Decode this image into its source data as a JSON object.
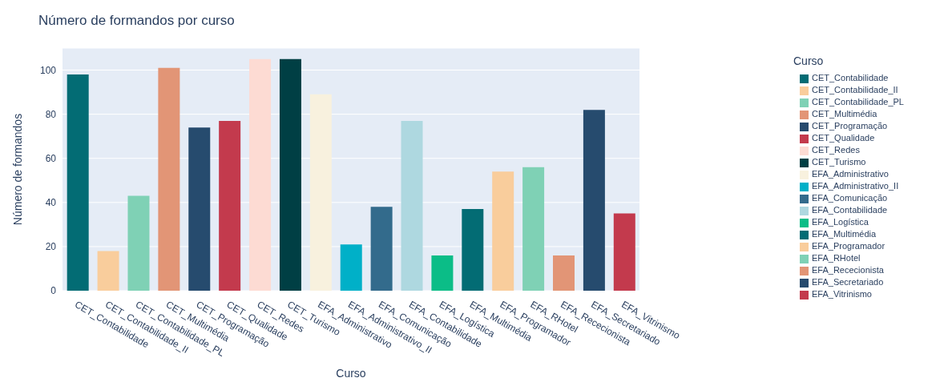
{
  "chart_data": {
    "type": "bar",
    "title": "Número de formandos por curso",
    "xlabel": "Curso",
    "ylabel": "Número de formandos",
    "legend_title": "Curso",
    "legend": "right",
    "grid": "y",
    "stacked": true,
    "categories": [
      "CET_Contabilidade",
      "CET_Contabilidade_II",
      "CET_Contabilidade_PL",
      "CET_Multimédia",
      "CET_Programação",
      "CET_Qualidade",
      "CET_Redes",
      "CET_Turismo",
      "EFA_Administrativo",
      "EFA_Administrativo_II",
      "EFA_Comunicação",
      "EFA_Contabilidade",
      "EFA_Logística",
      "EFA_Multimédia",
      "EFA_Programador",
      "EFA_RHotel",
      "EFA_Rececionista",
      "EFA_Secretariado",
      "EFA_Vitrinismo"
    ],
    "series": [
      {
        "name": "CET_Contabilidade",
        "color": "#036c74",
        "values": [
          98,
          null,
          null,
          null,
          null,
          null,
          null,
          null,
          null,
          null,
          null,
          null,
          null,
          null,
          null,
          null,
          null,
          null,
          null
        ]
      },
      {
        "name": "CET_Contabilidade_II",
        "color": "#f9cd9c",
        "values": [
          null,
          18,
          null,
          null,
          null,
          null,
          null,
          null,
          null,
          null,
          null,
          null,
          null,
          null,
          null,
          null,
          null,
          null,
          null
        ]
      },
      {
        "name": "CET_Contabilidade_PL",
        "color": "#7fd1b5",
        "values": [
          null,
          null,
          43,
          null,
          null,
          null,
          null,
          null,
          null,
          null,
          null,
          null,
          null,
          null,
          null,
          null,
          null,
          null,
          null
        ]
      },
      {
        "name": "CET_Multimédia",
        "color": "#e29576",
        "values": [
          null,
          null,
          null,
          101,
          null,
          null,
          null,
          null,
          null,
          null,
          null,
          null,
          null,
          null,
          null,
          null,
          null,
          null,
          null
        ]
      },
      {
        "name": "CET_Programação",
        "color": "#264b6e",
        "values": [
          null,
          null,
          null,
          null,
          74,
          null,
          null,
          null,
          null,
          null,
          null,
          null,
          null,
          null,
          null,
          null,
          null,
          null,
          null
        ]
      },
      {
        "name": "CET_Qualidade",
        "color": "#c33a4d",
        "values": [
          null,
          null,
          null,
          null,
          null,
          77,
          null,
          null,
          null,
          null,
          null,
          null,
          null,
          null,
          null,
          null,
          null,
          null,
          null
        ]
      },
      {
        "name": "CET_Redes",
        "color": "#fddbd3",
        "values": [
          null,
          null,
          null,
          null,
          null,
          null,
          105,
          null,
          null,
          null,
          null,
          null,
          null,
          null,
          null,
          null,
          null,
          null,
          null
        ]
      },
      {
        "name": "CET_Turismo",
        "color": "#003f44",
        "values": [
          null,
          null,
          null,
          null,
          null,
          null,
          null,
          105,
          null,
          null,
          null,
          null,
          null,
          null,
          null,
          null,
          null,
          null,
          null
        ]
      },
      {
        "name": "EFA_Administrativo",
        "color": "#f8f1de",
        "values": [
          null,
          null,
          null,
          null,
          null,
          null,
          null,
          null,
          89,
          null,
          null,
          null,
          null,
          null,
          null,
          null,
          null,
          null,
          null
        ]
      },
      {
        "name": "EFA_Administrativo_II",
        "color": "#00b0c8",
        "values": [
          null,
          null,
          null,
          null,
          null,
          null,
          null,
          null,
          null,
          21,
          null,
          null,
          null,
          null,
          null,
          null,
          null,
          null,
          null
        ]
      },
      {
        "name": "EFA_Comunicação",
        "color": "#336b8c",
        "values": [
          null,
          null,
          null,
          null,
          null,
          null,
          null,
          null,
          null,
          null,
          38,
          null,
          null,
          null,
          null,
          null,
          null,
          null,
          null
        ]
      },
      {
        "name": "EFA_Contabilidade",
        "color": "#aed8e0",
        "values": [
          null,
          null,
          null,
          null,
          null,
          null,
          null,
          null,
          null,
          null,
          null,
          77,
          null,
          null,
          null,
          null,
          null,
          null,
          null
        ]
      },
      {
        "name": "EFA_Logística",
        "color": "#0bbd87",
        "values": [
          null,
          null,
          null,
          null,
          null,
          null,
          null,
          null,
          null,
          null,
          null,
          null,
          16,
          null,
          null,
          null,
          null,
          null,
          null
        ]
      },
      {
        "name": "EFA_Multimédia",
        "color": "#036c74",
        "values": [
          null,
          null,
          null,
          null,
          null,
          null,
          null,
          null,
          null,
          null,
          null,
          null,
          null,
          37,
          null,
          null,
          null,
          null,
          null
        ]
      },
      {
        "name": "EFA_Programador",
        "color": "#f9cd9c",
        "values": [
          null,
          null,
          null,
          null,
          null,
          null,
          null,
          null,
          null,
          null,
          null,
          null,
          null,
          null,
          54,
          null,
          null,
          null,
          null
        ]
      },
      {
        "name": "EFA_RHotel",
        "color": "#7fd1b5",
        "values": [
          null,
          null,
          null,
          null,
          null,
          null,
          null,
          null,
          null,
          null,
          null,
          null,
          null,
          null,
          null,
          56,
          null,
          null,
          null
        ]
      },
      {
        "name": "EFA_Rececionista",
        "color": "#e29576",
        "values": [
          null,
          null,
          null,
          null,
          null,
          null,
          null,
          null,
          null,
          null,
          null,
          null,
          null,
          null,
          null,
          null,
          16,
          null,
          null
        ]
      },
      {
        "name": "EFA_Secretariado",
        "color": "#264b6e",
        "values": [
          null,
          null,
          null,
          null,
          null,
          null,
          null,
          null,
          null,
          null,
          null,
          null,
          null,
          null,
          null,
          null,
          null,
          82,
          null
        ]
      },
      {
        "name": "EFA_Vitrinismo",
        "color": "#c33a4d",
        "values": [
          null,
          null,
          null,
          null,
          null,
          null,
          null,
          null,
          null,
          null,
          null,
          null,
          null,
          null,
          null,
          null,
          null,
          null,
          35
        ]
      }
    ],
    "ylim": [
      0,
      110
    ],
    "yticks": [
      0,
      20,
      40,
      60,
      80,
      100
    ]
  }
}
